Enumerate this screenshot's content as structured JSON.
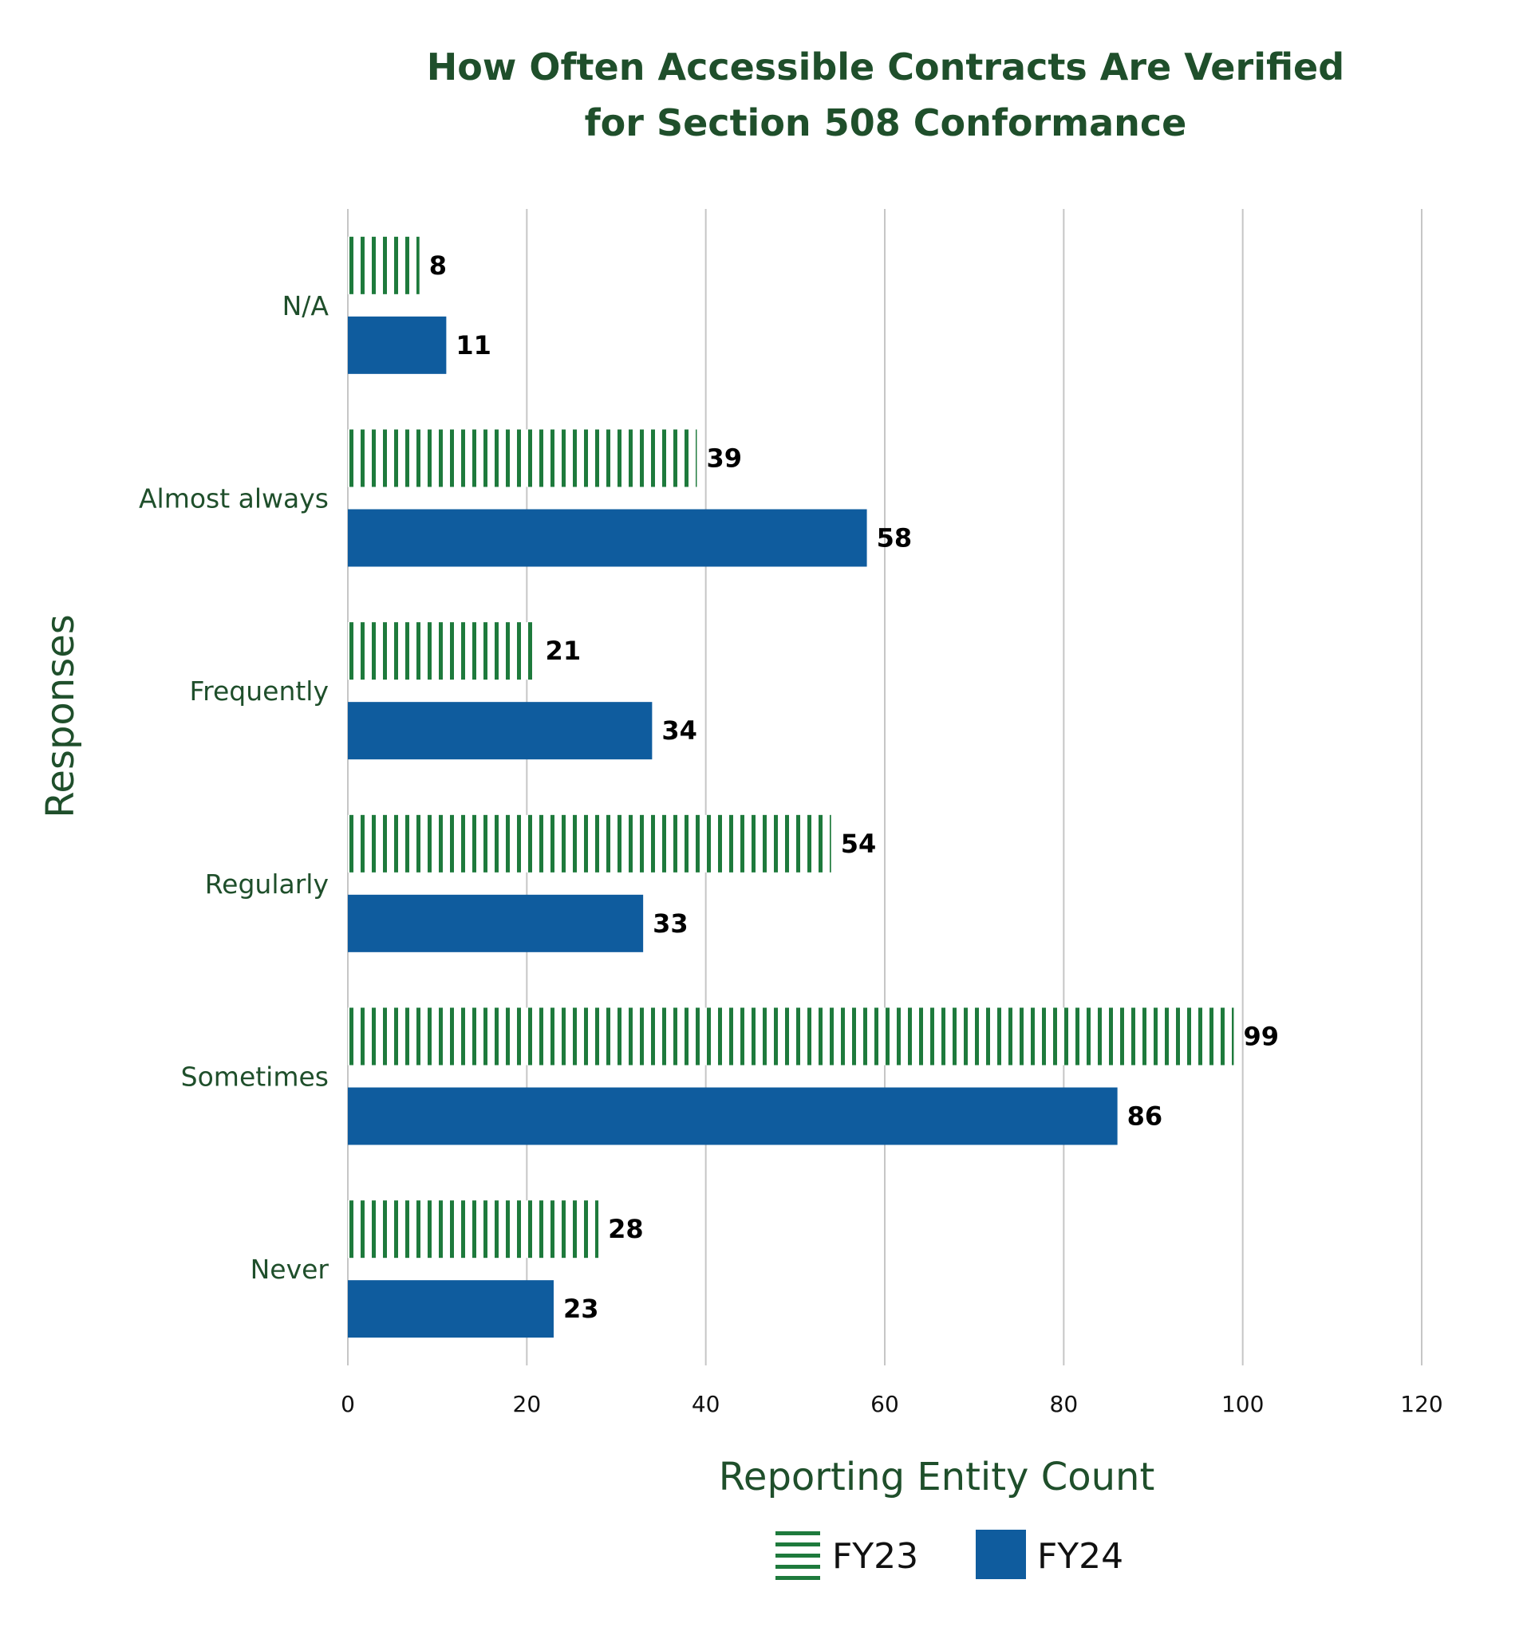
{
  "chart_data": {
    "type": "bar",
    "orientation": "horizontal",
    "title": [
      "How Often Accessible Contracts Are Verified",
      "for Section 508 Conformance"
    ],
    "xlabel": "Reporting Entity Count",
    "ylabel": "Responses",
    "categories": [
      "N/A",
      "Almost always",
      "Frequently",
      "Regularly",
      "Sometimes",
      "Never"
    ],
    "series": [
      {
        "name": "FY23",
        "values": [
          8,
          39,
          21,
          54,
          99,
          28
        ],
        "color": "#1e7a3c",
        "pattern": "vertical-stripes"
      },
      {
        "name": "FY24",
        "values": [
          11,
          58,
          34,
          33,
          86,
          23
        ],
        "color": "#0f5c9e",
        "pattern": "solid"
      }
    ],
    "xlim": [
      0,
      120
    ],
    "xticks": [
      "0",
      "20",
      "40",
      "60",
      "80",
      "100",
      "120"
    ],
    "grid": "vertical",
    "legend_position": "bottom",
    "data_labels": true
  }
}
